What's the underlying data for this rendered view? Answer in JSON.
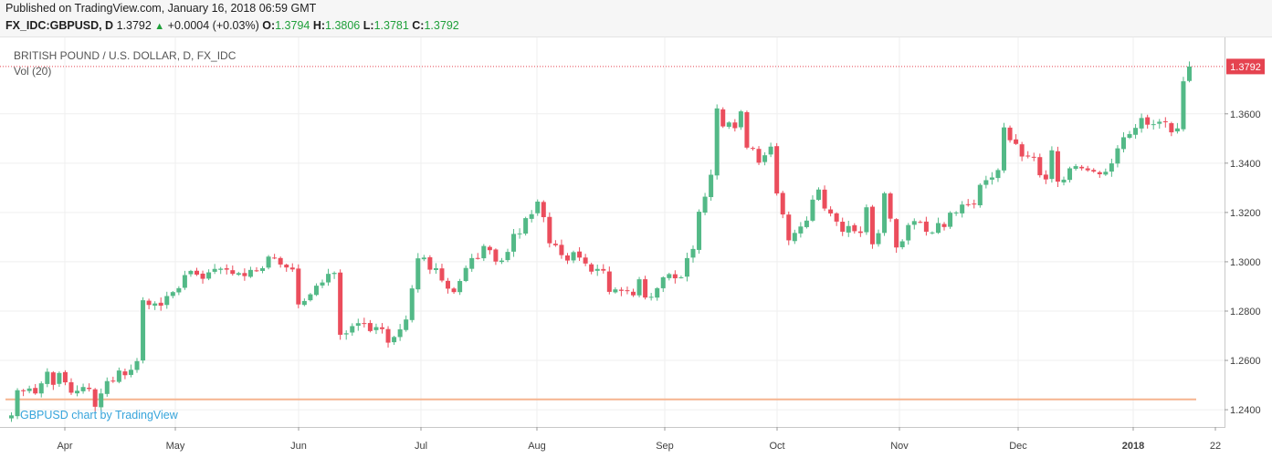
{
  "header": {
    "published": "Published on TradingView.com, January 16, 2018 06:59 GMT",
    "symbol": "FX_IDC:GBPUSD, D",
    "last": "1.3792",
    "change": "+0.0004 (+0.03%)",
    "o_label": "O:",
    "o_value": "1.3794",
    "h_label": "H:",
    "h_value": "1.3806",
    "l_label": "L:",
    "l_value": "1.3781",
    "c_label": "C:",
    "c_value": "1.3792"
  },
  "legend": {
    "title": "BRITISH POUND / U.S. DOLLAR, D, FX_IDC",
    "volume": "Vol (20)",
    "watermark": "GBPUSD chart by TradingView"
  },
  "colors": {
    "up": "#53b987",
    "down": "#eb4d5c",
    "grid": "#efefef",
    "volume_line": "#f6b48f",
    "last_price": "#e54350",
    "watermark": "#36a4db"
  },
  "chart_data": {
    "type": "candlestick",
    "title": "BRITISH POUND / U.S. DOLLAR, D, FX_IDC",
    "ylim": [
      1.233,
      1.391
    ],
    "y_ticks": [
      1.24,
      1.26,
      1.28,
      1.3,
      1.32,
      1.34,
      1.36
    ],
    "y_tick_labels": [
      "1.2400",
      "1.2600",
      "1.2800",
      "1.3000",
      "1.3200",
      "1.3400",
      "1.3600"
    ],
    "last_price_label": "1.3792",
    "x_ticks": [
      "Apr",
      "May",
      "Jun",
      "Jul",
      "Aug",
      "Sep",
      "Oct",
      "Nov",
      "Dec",
      "2018",
      "22"
    ],
    "grid": true,
    "volume_indicator": {
      "name": "Vol (20)",
      "level": 1.2442
    },
    "closes": [
      1.2377,
      1.2479,
      1.2475,
      1.2486,
      1.2466,
      1.2507,
      1.2554,
      1.2501,
      1.2549,
      1.2511,
      1.2469,
      1.2477,
      1.2492,
      1.2484,
      1.2412,
      1.2466,
      1.2516,
      1.2515,
      1.2559,
      1.254,
      1.2562,
      1.2597,
      1.2844,
      1.2825,
      1.2831,
      1.2822,
      1.2861,
      1.2877,
      1.2893,
      1.2946,
      1.2963,
      1.2948,
      1.2931,
      1.2957,
      1.2971,
      1.2972,
      1.2968,
      1.2951,
      1.2954,
      1.2942,
      1.2967,
      1.2964,
      1.2974,
      1.3021,
      1.3016,
      1.2989,
      1.2977,
      1.2969,
      1.2827,
      1.2841,
      1.2868,
      1.2903,
      1.2916,
      1.2951,
      1.2955,
      1.2704,
      1.271,
      1.2739,
      1.2751,
      1.2749,
      1.2719,
      1.2735,
      1.2727,
      1.2672,
      1.2695,
      1.2726,
      1.2766,
      1.2892,
      1.3014,
      1.3017,
      1.2968,
      1.2974,
      1.2924,
      1.2891,
      1.2877,
      1.2922,
      1.2975,
      1.3015,
      1.3015,
      1.3064,
      1.3047,
      1.3001,
      1.3005,
      1.304,
      1.3113,
      1.3115,
      1.3177,
      1.3193,
      1.3244,
      1.3181,
      1.3075,
      1.3067,
      1.3027,
      1.3005,
      1.3039,
      1.3017,
      1.2993,
      1.296,
      1.2971,
      1.2964,
      1.2878,
      1.2888,
      1.2882,
      1.2882,
      1.2864,
      1.2929,
      1.2855,
      1.2858,
      1.2893,
      1.2937,
      1.295,
      1.2933,
      1.2937,
      1.3015,
      1.3052,
      1.3203,
      1.3264,
      1.3353,
      1.3622,
      1.3549,
      1.3565,
      1.3542,
      1.361,
      1.3463,
      1.3461,
      1.3402,
      1.3432,
      1.3467,
      1.3277,
      1.3192,
      1.3087,
      1.3117,
      1.3143,
      1.3167,
      1.3252,
      1.3293,
      1.3216,
      1.3196,
      1.3163,
      1.3122,
      1.3145,
      1.3124,
      1.3117,
      1.3221,
      1.3071,
      1.3116,
      1.3278,
      1.3175,
      1.3058,
      1.3083,
      1.3149,
      1.3165,
      1.3161,
      1.3122,
      1.3119,
      1.3157,
      1.3141,
      1.3199,
      1.32,
      1.3232,
      1.3233,
      1.3233,
      1.3312,
      1.3331,
      1.3342,
      1.3372,
      1.3545,
      1.3493,
      1.3478,
      1.3427,
      1.3427,
      1.3422,
      1.3351,
      1.3334,
      1.3452,
      1.3325,
      1.3333,
      1.3379,
      1.3388,
      1.3379,
      1.3371,
      1.3366,
      1.3355,
      1.3365,
      1.3399,
      1.346,
      1.3505,
      1.3518,
      1.3543,
      1.3583,
      1.3556,
      1.3558,
      1.3568,
      1.3566,
      1.3525,
      1.3541,
      1.3732,
      1.3792
    ]
  }
}
